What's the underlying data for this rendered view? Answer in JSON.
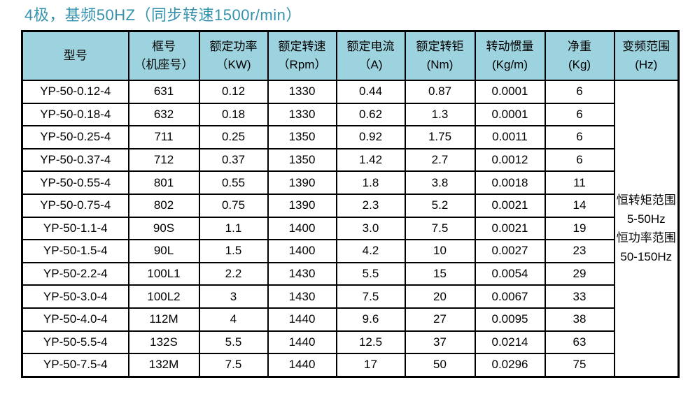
{
  "title": "4极，基频50HZ（同步转速1500r/min）",
  "colors": {
    "title_text": "#3492ae",
    "header_background": "#9dd3de",
    "table_border": "#000000"
  },
  "table": {
    "columns": [
      {
        "line1": "型号",
        "line2": ""
      },
      {
        "line1": "框号",
        "line2": "（机座号）"
      },
      {
        "line1": "额定功率",
        "line2": "（KW)"
      },
      {
        "line1": "额定转速",
        "line2": "（Rpm）"
      },
      {
        "line1": "额定电流",
        "line2": "（A)"
      },
      {
        "line1": "额定转钜",
        "line2": "(Nm)"
      },
      {
        "line1": "转动惯量",
        "line2": "(Kg/m)"
      },
      {
        "line1": "净重",
        "line2": "(Kg)"
      },
      {
        "line1": "变频范围",
        "line2": "(Hz)"
      }
    ],
    "column_keys": [
      "model",
      "frame",
      "power",
      "speed",
      "current",
      "torque",
      "inertia",
      "weight"
    ],
    "rows": [
      [
        "YP-50-0.12-4",
        "631",
        "0.12",
        "1330",
        "0.44",
        "0.87",
        "0.0001",
        "6"
      ],
      [
        "YP-50-0.18-4",
        "632",
        "0.18",
        "1330",
        "0.62",
        "1.3",
        "0.0001",
        "6"
      ],
      [
        "YP-50-0.25-4",
        "711",
        "0.25",
        "1350",
        "0.92",
        "1.75",
        "0.0011",
        "6"
      ],
      [
        "YP-50-0.37-4",
        "712",
        "0.37",
        "1350",
        "1.42",
        "2.7",
        "0.0012",
        "6"
      ],
      [
        "YP-50-0.55-4",
        "801",
        "0.55",
        "1390",
        "1.8",
        "3.8",
        "0.0018",
        "11"
      ],
      [
        "YP-50-0.75-4",
        "802",
        "0.75",
        "1390",
        "2.3",
        "5.2",
        "0.0021",
        "14"
      ],
      [
        "YP-50-1.1-4",
        "90S",
        "1.1",
        "1400",
        "3.0",
        "7.5",
        "0.0021",
        "19"
      ],
      [
        "YP-50-1.5-4",
        "90L",
        "1.5",
        "1400",
        "4.2",
        "10",
        "0.0027",
        "23"
      ],
      [
        "YP-50-2.2-4",
        "100L1",
        "2.2",
        "1430",
        "5.5",
        "15",
        "0.0054",
        "29"
      ],
      [
        "YP-50-3.0-4",
        "100L2",
        "3",
        "1430",
        "7.5",
        "20",
        "0.0067",
        "33"
      ],
      [
        "YP-50-4.0-4",
        "112M",
        "4",
        "1440",
        "9.6",
        "27",
        "0.0095",
        "38"
      ],
      [
        "YP-50-5.5-4",
        "132S",
        "5.5",
        "1440",
        "12.5",
        "37",
        "0.0214",
        "63"
      ],
      [
        "YP-50-7.5-4",
        "132M",
        "7.5",
        "1440",
        "17",
        "50",
        "0.0296",
        "75"
      ]
    ],
    "frequency_range_lines": [
      "恒转矩范围",
      "5-50Hz",
      "恒功率范围",
      "50-150Hz"
    ]
  }
}
